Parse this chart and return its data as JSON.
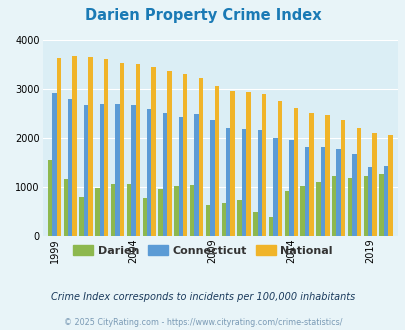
{
  "title": "Darien Property Crime Index",
  "title_color": "#1a7ab5",
  "years": [
    1999,
    2000,
    2001,
    2002,
    2003,
    2004,
    2005,
    2006,
    2007,
    2008,
    2009,
    2010,
    2011,
    2012,
    2013,
    2014,
    2015,
    2016,
    2017,
    2018,
    2019,
    2020
  ],
  "darien": [
    1550,
    1150,
    800,
    980,
    1060,
    1060,
    780,
    950,
    1020,
    1040,
    630,
    680,
    730,
    480,
    390,
    920,
    1020,
    1100,
    1230,
    1190,
    1220,
    1270
  ],
  "connecticut": [
    2920,
    2790,
    2670,
    2680,
    2690,
    2670,
    2590,
    2510,
    2430,
    2490,
    2370,
    2190,
    2170,
    2150,
    2000,
    1950,
    1810,
    1810,
    1780,
    1660,
    1410,
    1420
  ],
  "national": [
    3620,
    3660,
    3640,
    3610,
    3520,
    3500,
    3440,
    3360,
    3290,
    3220,
    3050,
    2960,
    2930,
    2890,
    2740,
    2600,
    2510,
    2460,
    2360,
    2200,
    2100,
    2050
  ],
  "darien_color": "#8db84e",
  "connecticut_color": "#5b9bd5",
  "national_color": "#f0b429",
  "bg_color": "#e8f4f8",
  "plot_bg": "#dbeef5",
  "ylim": [
    0,
    4000
  ],
  "yticks": [
    0,
    1000,
    2000,
    3000,
    4000
  ],
  "xtick_years": [
    1999,
    2004,
    2009,
    2014,
    2019
  ],
  "footnote": "Crime Index corresponds to incidents per 100,000 inhabitants",
  "copyright": "© 2025 CityRating.com - https://www.cityrating.com/crime-statistics/",
  "bar_width": 0.28,
  "footnote_color": "#1a3a5c",
  "copyright_color": "#7a9ab5"
}
